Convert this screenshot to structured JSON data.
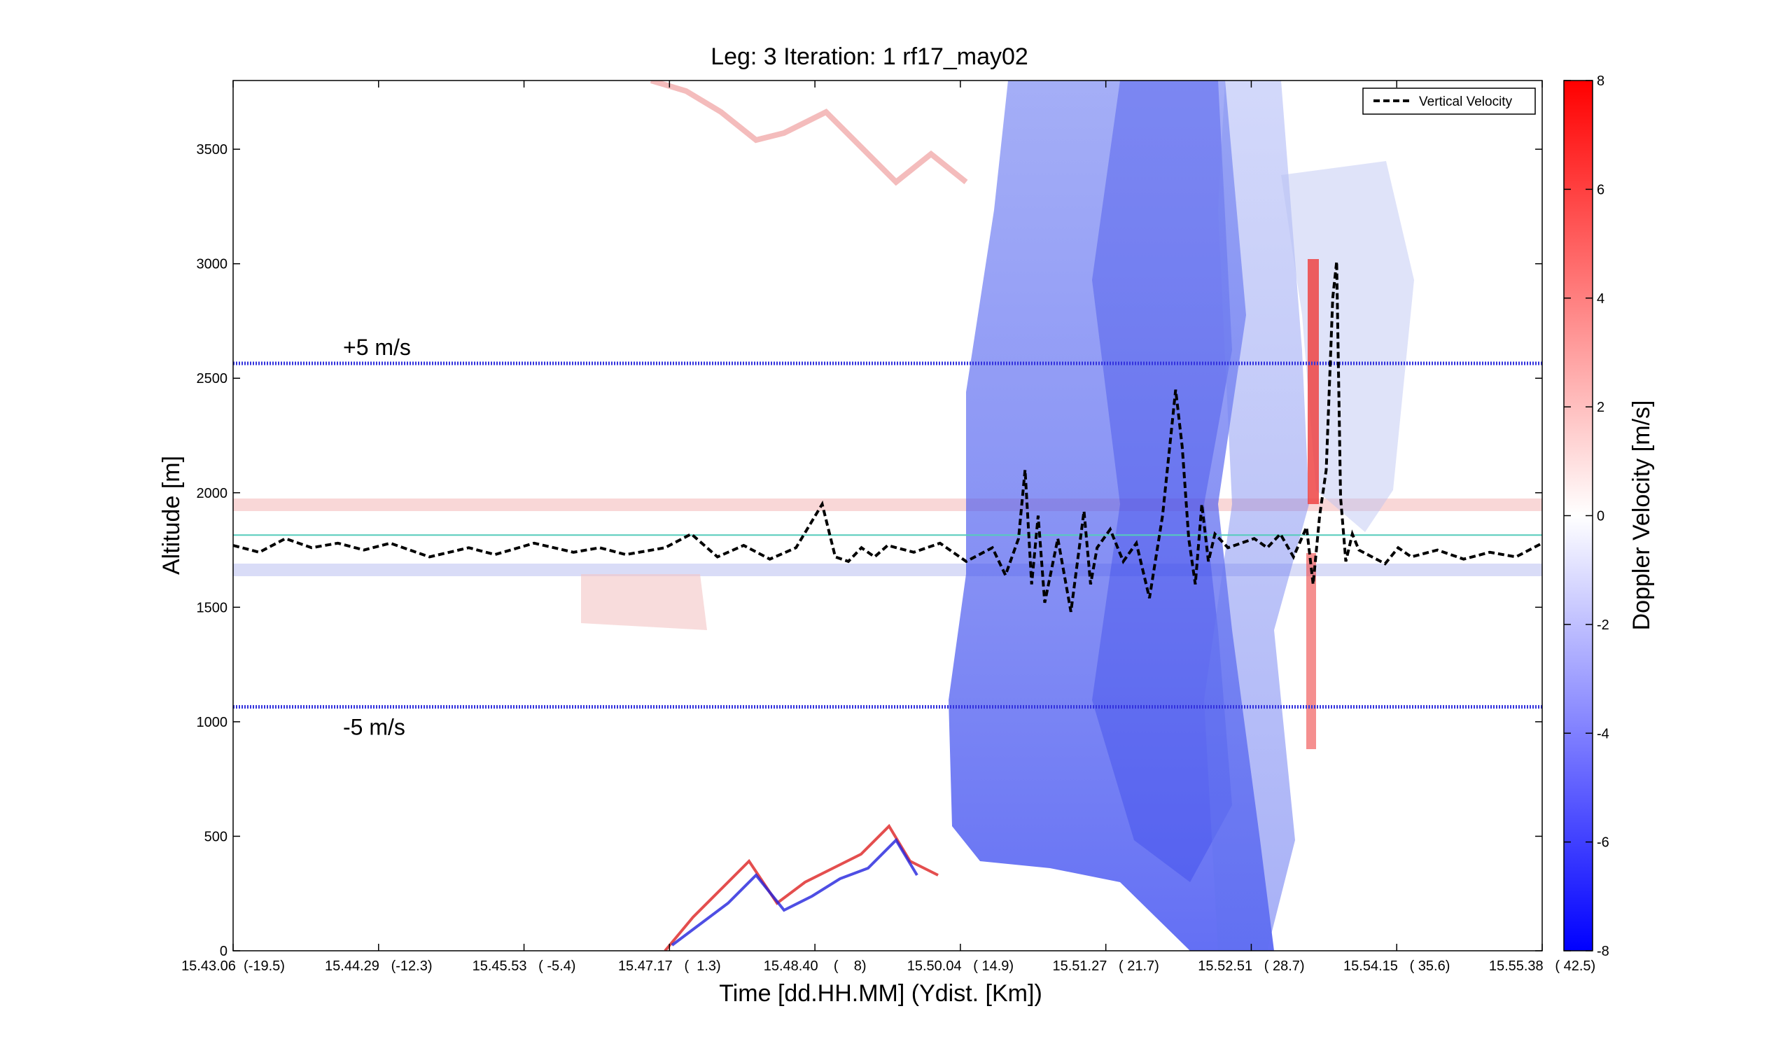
{
  "chart_data": {
    "type": "heatmap",
    "title": "Leg: 3  Iteration: 1  rf17_may02",
    "xlabel": "Time [dd.HH.MM]     (Ydist. [Km])",
    "ylabel": "Altitude [m]",
    "colorbar_label": "Doppler Velocity [m/s]",
    "ylim": [
      0,
      3800
    ],
    "clim": [
      -8,
      8
    ],
    "y_ticks": [
      0,
      500,
      1000,
      1500,
      2000,
      2500,
      3000,
      3500
    ],
    "y_tick_labels": [
      "0",
      "500",
      "1000",
      "1500",
      "2000",
      "2500",
      "3000",
      "3500"
    ],
    "x_tick_labels": [
      "15.43.06  (-19.5)",
      "15.44.29   (-12.3)",
      "15.45.53   ( -5.4)",
      "15.47.17   (  1.3)",
      "15.48.40    (    8)",
      "15.50.04   ( 14.9)",
      "15.51.27   ( 21.7)",
      "15.52.51   ( 28.7)",
      "15.54.15   ( 35.6)",
      "15.55.38   ( 42.5)"
    ],
    "colorbar_ticks": [
      -8,
      -6,
      -4,
      -2,
      0,
      2,
      4,
      6,
      8
    ],
    "colorbar_tick_labels": [
      "-8",
      "-6",
      "-4",
      "-2",
      "0",
      "2",
      "4",
      "6",
      "8"
    ],
    "colormap": {
      "low": "#0000ff",
      "mid": "#ffffff",
      "high": "#ff0000"
    },
    "legend": {
      "label": "Vertical Velocity",
      "placement": "top-right"
    },
    "reference_lines": [
      {
        "label": "+5 m/s",
        "altitude": 2565,
        "color": "#3333dd",
        "style": "dotted"
      },
      {
        "label": "-5 m/s",
        "altitude": 1065,
        "color": "#3333dd",
        "style": "dotted"
      },
      {
        "label": "",
        "altitude": 1815,
        "color": "#55ccbb",
        "style": "solid"
      }
    ],
    "vertical_velocity_series": {
      "name": "Vertical Velocity",
      "color": "#000000",
      "style": "dashed",
      "x_fraction": [
        0.0,
        0.02,
        0.04,
        0.06,
        0.08,
        0.1,
        0.12,
        0.15,
        0.18,
        0.2,
        0.23,
        0.26,
        0.28,
        0.3,
        0.33,
        0.35,
        0.37,
        0.39,
        0.41,
        0.43,
        0.45,
        0.46,
        0.47,
        0.48,
        0.49,
        0.5,
        0.52,
        0.54,
        0.56,
        0.58,
        0.59,
        0.6,
        0.605,
        0.61,
        0.615,
        0.62,
        0.63,
        0.64,
        0.645,
        0.65,
        0.655,
        0.66,
        0.67,
        0.68,
        0.69,
        0.7,
        0.71,
        0.72,
        0.725,
        0.73,
        0.735,
        0.74,
        0.745,
        0.75,
        0.76,
        0.77,
        0.78,
        0.79,
        0.8,
        0.81,
        0.82,
        0.825,
        0.83,
        0.835,
        0.84,
        0.843,
        0.846,
        0.85,
        0.855,
        0.86,
        0.87,
        0.88,
        0.89,
        0.9,
        0.92,
        0.94,
        0.96,
        0.98,
        1.0
      ],
      "altitude": [
        1770,
        1740,
        1800,
        1760,
        1780,
        1750,
        1780,
        1720,
        1760,
        1730,
        1780,
        1740,
        1760,
        1730,
        1760,
        1820,
        1720,
        1770,
        1710,
        1760,
        1950,
        1720,
        1700,
        1760,
        1720,
        1770,
        1740,
        1780,
        1700,
        1760,
        1640,
        1800,
        2100,
        1600,
        1900,
        1520,
        1800,
        1480,
        1700,
        1920,
        1600,
        1760,
        1840,
        1700,
        1780,
        1540,
        1900,
        2450,
        2200,
        1800,
        1600,
        1950,
        1700,
        1820,
        1760,
        1780,
        1800,
        1760,
        1820,
        1720,
        1850,
        1600,
        1900,
        2100,
        2850,
        3010,
        1980,
        1700,
        1820,
        1750,
        1720,
        1690,
        1760,
        1720,
        1750,
        1710,
        1740,
        1720,
        1780
      ]
    }
  }
}
